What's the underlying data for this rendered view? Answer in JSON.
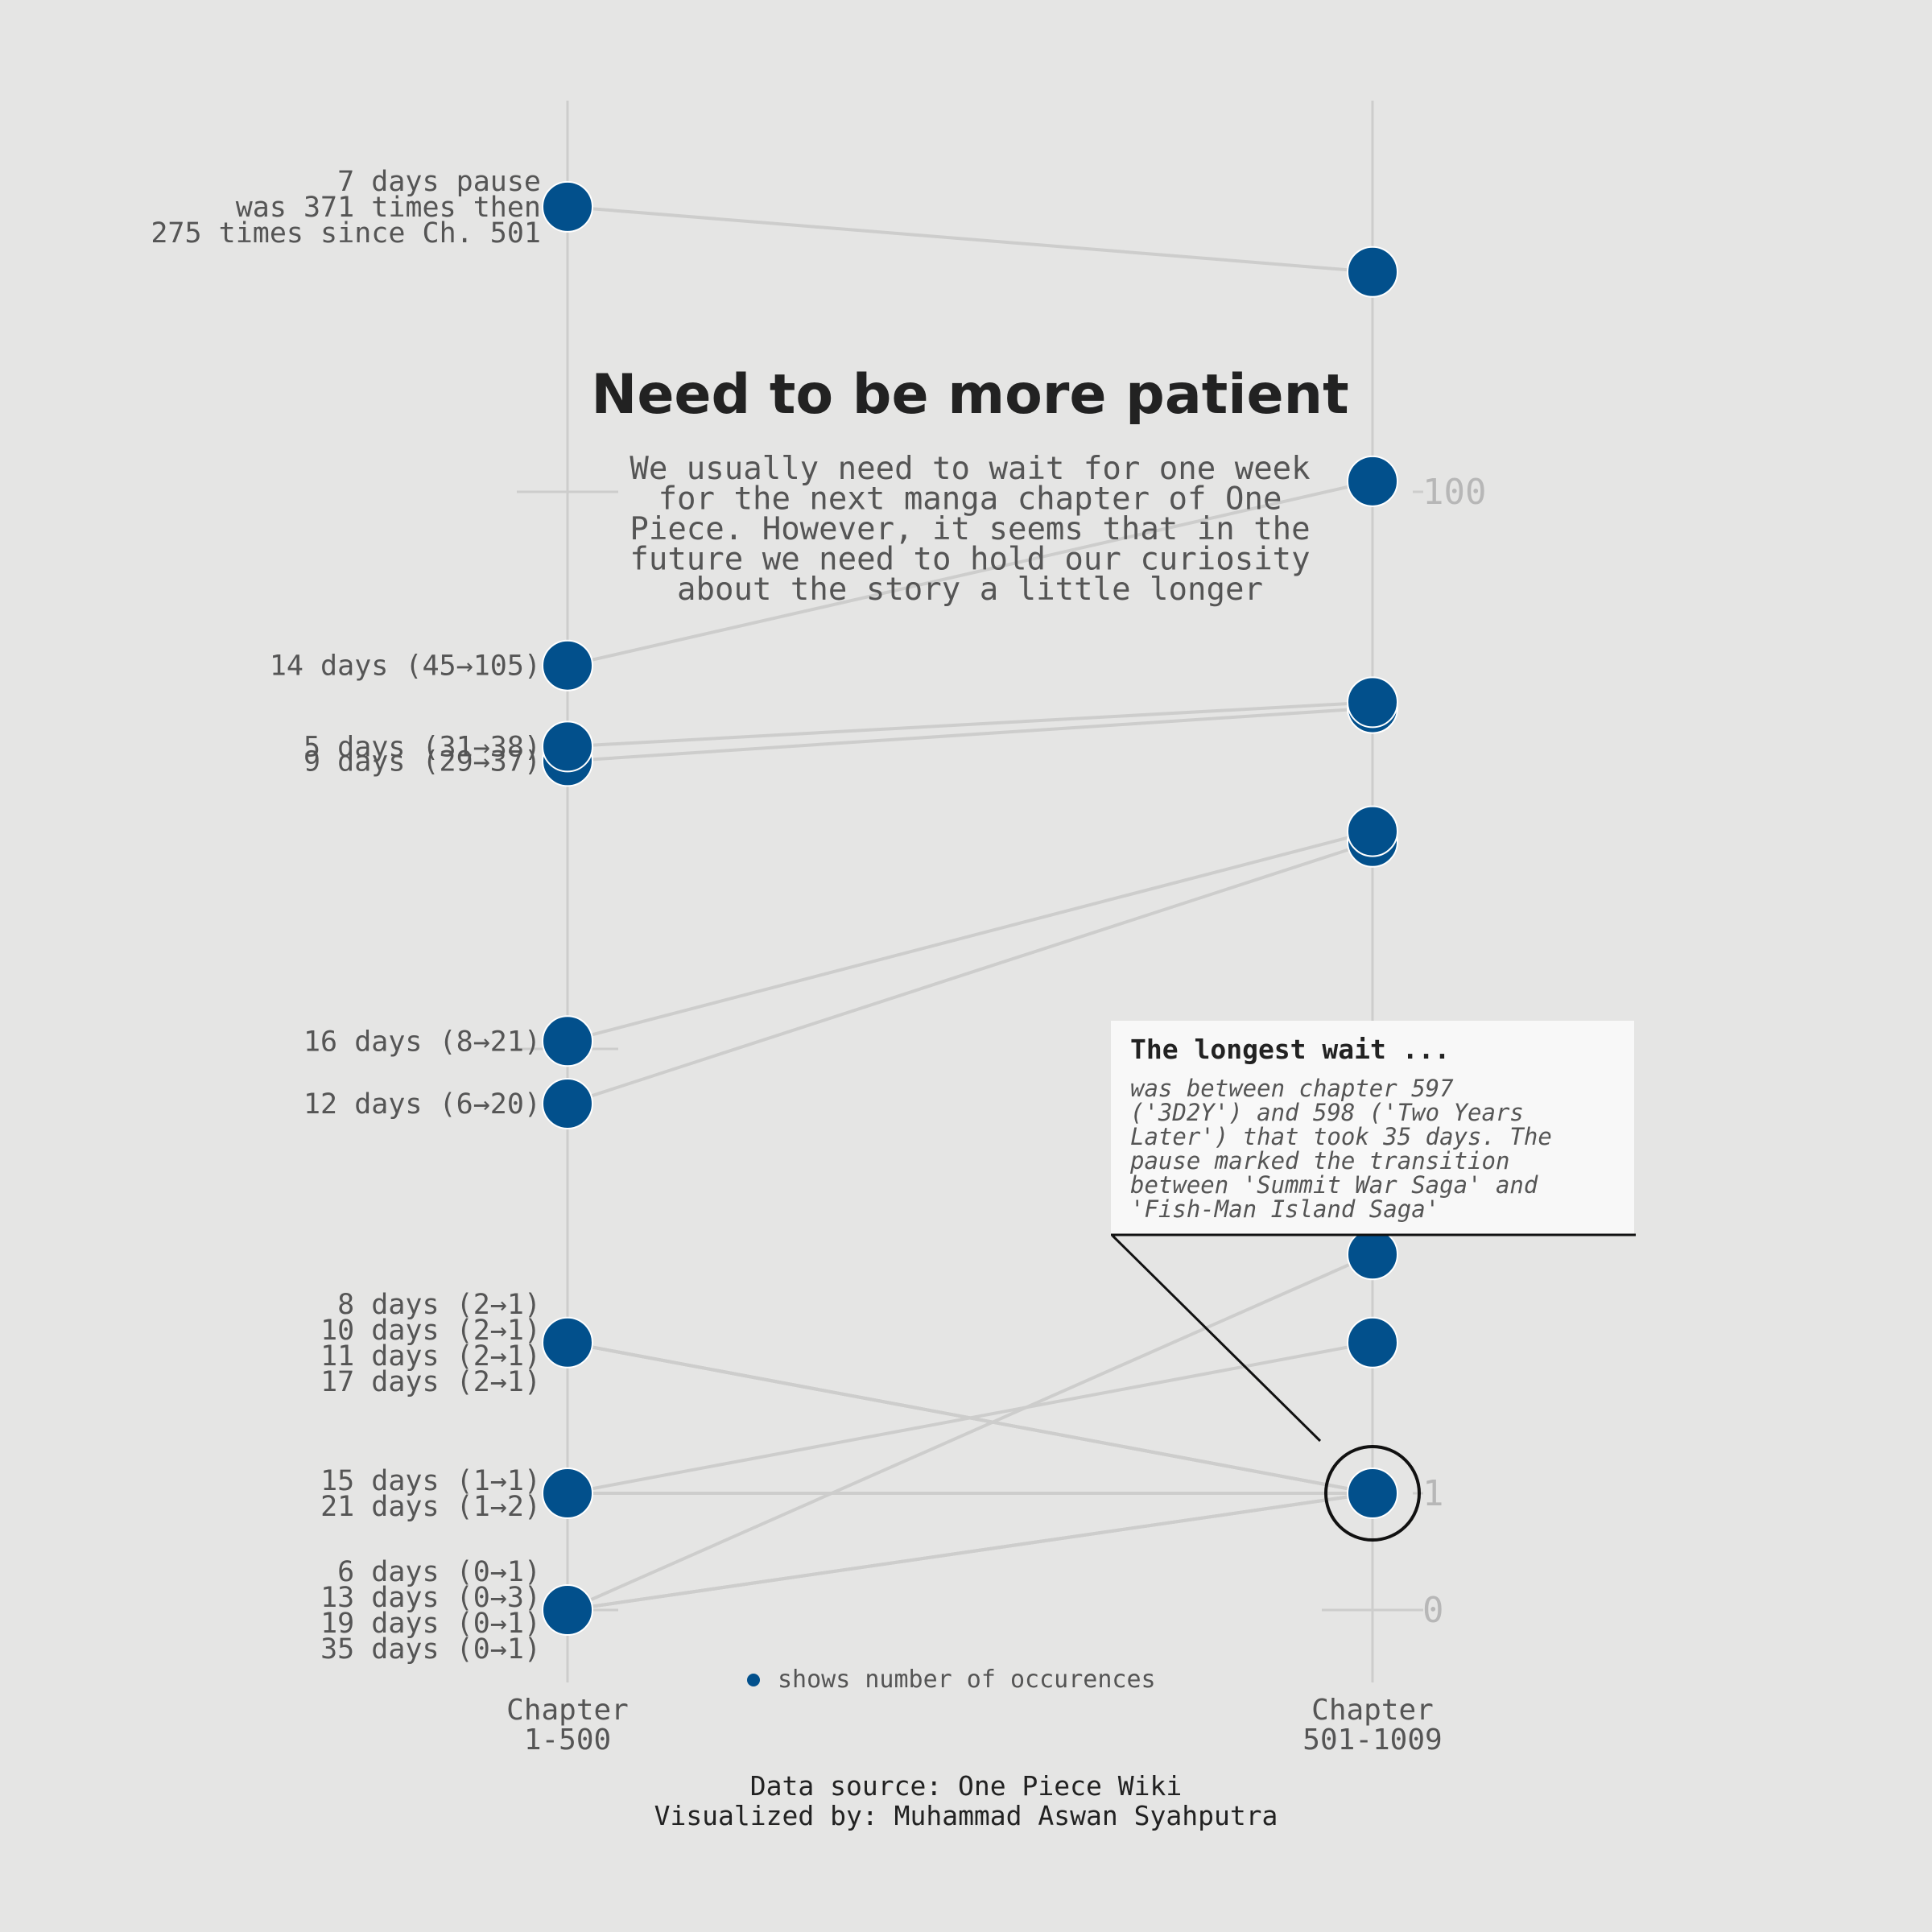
{
  "chart_data": {
    "type": "slope",
    "title": "Need to be more patient",
    "subtitle": "We usually need to wait for one week for the next manga chapter of One Piece. However, it seems that in the future we need to hold our curiosity about the story a little longer",
    "scale": "symlog",
    "ytick_labels": [
      "0",
      "1",
      "100"
    ],
    "columns": [
      "Chapter\n1-500",
      "Chapter\n501-1009"
    ],
    "series": [
      {
        "days": 7,
        "before": 371,
        "after": 275
      },
      {
        "days": 14,
        "before": 45,
        "after": 105
      },
      {
        "days": 5,
        "before": 31,
        "after": 38
      },
      {
        "days": 9,
        "before": 29,
        "after": 37
      },
      {
        "days": 16,
        "before": 8,
        "after": 21
      },
      {
        "days": 12,
        "before": 6,
        "after": 20
      },
      {
        "days": 8,
        "before": 2,
        "after": 1
      },
      {
        "days": 10,
        "before": 2,
        "after": 1
      },
      {
        "days": 11,
        "before": 2,
        "after": 1
      },
      {
        "days": 17,
        "before": 2,
        "after": 1
      },
      {
        "days": 15,
        "before": 1,
        "after": 1
      },
      {
        "days": 21,
        "before": 1,
        "after": 2
      },
      {
        "days": 6,
        "before": 0,
        "after": 1
      },
      {
        "days": 13,
        "before": 0,
        "after": 3
      },
      {
        "days": 19,
        "before": 0,
        "after": 1
      },
      {
        "days": 35,
        "before": 0,
        "after": 1
      }
    ],
    "left_labels": [
      {
        "value": 371,
        "lines": [
          "7 days pause",
          "was 371 times then",
          "275 times since Ch. 501"
        ]
      },
      {
        "value": 45,
        "lines": [
          "14 days (45→105)"
        ]
      },
      {
        "value": 31,
        "lines": [
          "5 days (31→38)"
        ]
      },
      {
        "value": 29,
        "lines": [
          "9 days (29→37)"
        ]
      },
      {
        "value": 8,
        "lines": [
          "16 days (8→21)"
        ]
      },
      {
        "value": 6,
        "lines": [
          "12 days (6→20)"
        ]
      },
      {
        "value": 2,
        "lines": [
          "8 days (2→1)",
          "10 days (2→1)",
          "11 days (2→1)",
          "17 days (2→1)"
        ]
      },
      {
        "value": 1,
        "lines": [
          "15 days (1→1)",
          "21 days (1→2)"
        ]
      },
      {
        "value": 0,
        "lines": [
          "6 days (0→1)",
          "13 days (0→3)",
          "19 days (0→1)",
          "35 days (0→1)"
        ]
      }
    ],
    "annotation": {
      "title": "The longest wait ...",
      "text": "was between chapter 597 ('3D2Y') and 598 ('Two Years Later') that took 35 days. The pause marked the transition between 'Summit War Saga' and 'Fish-Man Island Saga'",
      "target_value": 1
    },
    "legend": "shows number of occurences",
    "source": "Data source: One Piece Wiki",
    "credit": "Visualized by: Muhammad Aswan Syahputra",
    "colors": {
      "background": "#e5e5e4",
      "dot": "#02508c",
      "line": "#cdcdcc",
      "text": "#555555",
      "axis_text": "#b7b7b7",
      "title": "#222222"
    }
  }
}
